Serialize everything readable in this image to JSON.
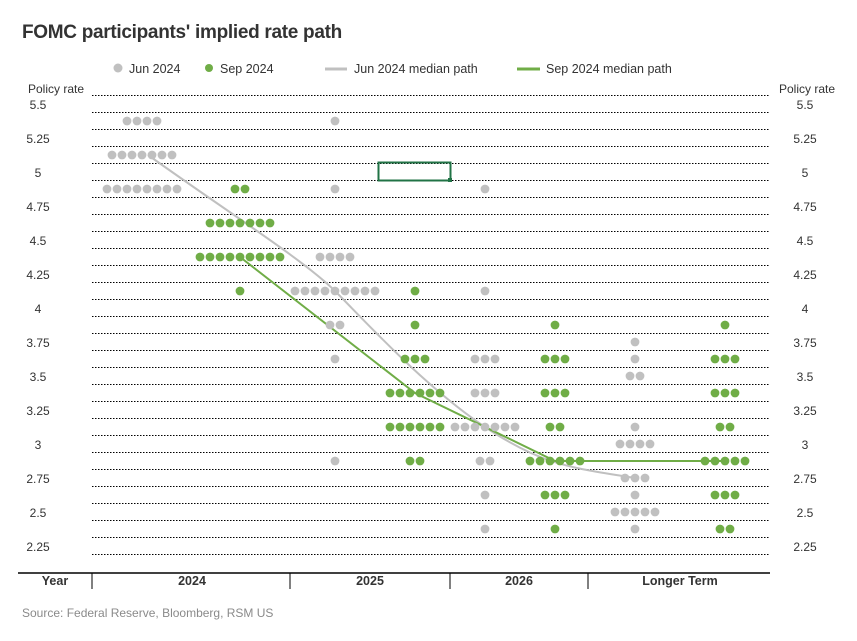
{
  "title": "FOMC participants' implied rate path",
  "source": "Source: Federal Reserve, Bloomberg, RSM US",
  "chart_data": {
    "type": "scatter",
    "subtype": "dot-plot",
    "ylabel_left": "Policy rate",
    "ylabel_right": "Policy rate",
    "xlabel": "Year",
    "ylim": [
      2.1875,
      5.5625
    ],
    "yticks": [
      5.5,
      5.25,
      5,
      4.75,
      4.5,
      4.25,
      4,
      3.75,
      3.5,
      3.25,
      3,
      2.75,
      2.5,
      2.25
    ],
    "ytick_labels": [
      "5.5",
      "5.25",
      "5",
      "4.75",
      "4.5",
      "4.25",
      "4",
      "3.75",
      "3.5",
      "3.25",
      "3",
      "2.75",
      "2.5",
      "2.25"
    ],
    "grid": "dotted horizontal",
    "legend_placement": "top",
    "categories": [
      "2024",
      "2025",
      "2026",
      "Longer Term"
    ],
    "colors": {
      "Jun 2024": "#c0c0c0",
      "Sep 2024": "#70ad47"
    },
    "legend": [
      "Jun 2024",
      "Sep 2024",
      "Jun 2024 median path",
      "Sep 2024 median path"
    ],
    "series": [
      {
        "name": "Jun 2024",
        "kind": "dots",
        "dots": [
          {
            "category": "2024",
            "counts": {
              "5.375": 4,
              "5.125": 7,
              "4.875": 8
            }
          },
          {
            "category": "2025",
            "counts": {
              "5.375": 1,
              "4.875": 1,
              "4.375": 4,
              "4.125": 9,
              "3.875": 2,
              "3.625": 1,
              "2.875": 1
            }
          },
          {
            "category": "2026",
            "counts": {
              "4.875": 1,
              "4.125": 1,
              "3.625": 3,
              "3.375": 3,
              "3.125": 7,
              "2.875": 2,
              "2.625": 1,
              "2.375": 1
            }
          },
          {
            "category": "Longer Term",
            "counts": {
              "3.75": 1,
              "3.625": 1,
              "3.5": 2,
              "3.125": 1,
              "3.0": 4,
              "2.75": 3,
              "2.625": 1,
              "2.5": 5,
              "2.375": 1
            }
          }
        ]
      },
      {
        "name": "Sep 2024",
        "kind": "dots",
        "dots": [
          {
            "category": "2024",
            "counts": {
              "4.875": 2,
              "4.625": 7,
              "4.375": 9,
              "4.125": 1
            }
          },
          {
            "category": "2025",
            "counts": {
              "4.125": 1,
              "3.875": 1,
              "3.625": 3,
              "3.375": 6,
              "3.125": 6,
              "2.875": 2
            }
          },
          {
            "category": "2026",
            "counts": {
              "3.875": 1,
              "3.625": 3,
              "3.375": 3,
              "3.125": 2,
              "2.875": 6,
              "2.625": 3,
              "2.375": 1
            }
          },
          {
            "category": "Longer Term",
            "counts": {
              "3.875": 1,
              "3.625": 3,
              "3.375": 3,
              "3.125": 2,
              "2.875": 5,
              "2.625": 3,
              "2.375": 2
            }
          }
        ]
      },
      {
        "name": "Jun 2024 median path",
        "kind": "line",
        "values": [
          5.125,
          4.125,
          3.125,
          2.75
        ]
      },
      {
        "name": "Sep 2024 median path",
        "kind": "line",
        "values": [
          4.375,
          3.375,
          2.875,
          2.875
        ]
      }
    ]
  }
}
